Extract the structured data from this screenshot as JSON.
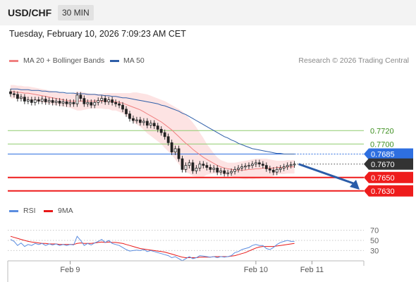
{
  "header": {
    "symbol": "USD/CHF",
    "timeframe": "30 MIN",
    "datetime": "Tuesday, February 10, 2026 7:09:23 AM CET"
  },
  "credit": "Research © 2026 Trading Central",
  "colors": {
    "ma20": "#f08080",
    "ma50": "#2e5ea8",
    "band": "#fde3e3",
    "resistance": "#8fcb6e",
    "pivot": "#2e6fe0",
    "support": "#ee1c1c",
    "current": "#333333",
    "rsi": "#5b8de0",
    "rsi_ma": "#e81818",
    "arrow": "#2a5ca8"
  },
  "chart_data": [
    {
      "type": "candlestick",
      "legend": [
        {
          "name": "MA 20 + Bollinger Bands",
          "color": "#f08080"
        },
        {
          "name": "MA 50",
          "color": "#2e5ea8"
        }
      ],
      "legend_placement": "top-left",
      "x_ticks": [
        "Feb 9",
        "Feb 10",
        "Feb 11"
      ],
      "x_tick_index": [
        17,
        70,
        86
      ],
      "x_range": [
        0,
        100
      ],
      "y_range": [
        0.7615,
        0.7815
      ],
      "levels": [
        {
          "value": 0.772,
          "label": "0.7720",
          "kind": "resistance"
        },
        {
          "value": 0.77,
          "label": "0.7700",
          "kind": "resistance"
        },
        {
          "value": 0.7685,
          "label": "0.7685",
          "kind": "pivot"
        },
        {
          "value": 0.767,
          "label": "0.7670",
          "kind": "current"
        },
        {
          "value": 0.765,
          "label": "0.7650",
          "kind": "support"
        },
        {
          "value": 0.763,
          "label": "0.7630",
          "kind": "support"
        }
      ],
      "close": [
        0.7775,
        0.7774,
        0.7768,
        0.777,
        0.7764,
        0.7766,
        0.7762,
        0.7766,
        0.7764,
        0.7767,
        0.7763,
        0.7765,
        0.7762,
        0.7764,
        0.7761,
        0.7763,
        0.776,
        0.7762,
        0.776,
        0.7773,
        0.7768,
        0.776,
        0.7762,
        0.7758,
        0.7762,
        0.7765,
        0.7768,
        0.7763,
        0.7766,
        0.7762,
        0.776,
        0.7758,
        0.7752,
        0.7745,
        0.7738,
        0.7735,
        0.7736,
        0.7732,
        0.7734,
        0.7728,
        0.7731,
        0.7727,
        0.7722,
        0.7717,
        0.7711,
        0.7702,
        0.7688,
        0.7693,
        0.7678,
        0.7662,
        0.7668,
        0.7672,
        0.766,
        0.7664,
        0.767,
        0.7668,
        0.7665,
        0.7662,
        0.7664,
        0.7658,
        0.766,
        0.7656,
        0.7657,
        0.7659,
        0.7662,
        0.7664,
        0.7666,
        0.7667,
        0.7668,
        0.767,
        0.7672,
        0.767,
        0.7668,
        0.7663,
        0.7661,
        0.7658,
        0.7662,
        0.7664,
        0.7666,
        0.7668,
        0.7669,
        0.767
      ],
      "ma20": [
        0.7778,
        0.7778,
        0.7777,
        0.7777,
        0.7776,
        0.7776,
        0.7775,
        0.7774,
        0.7773,
        0.7772,
        0.7771,
        0.777,
        0.7769,
        0.7768,
        0.7767,
        0.7766,
        0.7765,
        0.7764,
        0.7764,
        0.7764,
        0.7764,
        0.7764,
        0.7764,
        0.7764,
        0.7764,
        0.7764,
        0.7764,
        0.7764,
        0.7764,
        0.7763,
        0.7763,
        0.7762,
        0.7761,
        0.7759,
        0.7757,
        0.7755,
        0.7753,
        0.7751,
        0.7748,
        0.7745,
        0.7742,
        0.7739,
        0.7736,
        0.7733,
        0.7729,
        0.7725,
        0.7721,
        0.7716,
        0.7711,
        0.7706,
        0.7701,
        0.7697,
        0.7692,
        0.7688,
        0.7684,
        0.768,
        0.7677,
        0.7674,
        0.7671,
        0.7668,
        0.7666,
        0.7664,
        0.7663,
        0.7662,
        0.7661,
        0.7661,
        0.7661,
        0.7661,
        0.7662,
        0.7662,
        0.7663,
        0.7663,
        0.7664,
        0.7664,
        0.7664,
        0.7664,
        0.7665,
        0.7665,
        0.7665,
        0.7666,
        0.7666,
        0.7666
      ],
      "band_upper": [
        0.7788,
        0.7788,
        0.7787,
        0.7787,
        0.7786,
        0.7786,
        0.7785,
        0.7784,
        0.7783,
        0.7782,
        0.7781,
        0.778,
        0.7779,
        0.7778,
        0.7777,
        0.7776,
        0.7775,
        0.7774,
        0.7776,
        0.7778,
        0.7778,
        0.7777,
        0.7776,
        0.7775,
        0.7775,
        0.7775,
        0.7775,
        0.7776,
        0.7776,
        0.7776,
        0.7776,
        0.7776,
        0.7776,
        0.7776,
        0.7776,
        0.7777,
        0.7777,
        0.7776,
        0.7775,
        0.7774,
        0.7772,
        0.777,
        0.7768,
        0.7766,
        0.7764,
        0.7761,
        0.7758,
        0.7755,
        0.7752,
        0.7749,
        0.7744,
        0.7738,
        0.7732,
        0.7725,
        0.7717,
        0.7709,
        0.77,
        0.7693,
        0.7686,
        0.768,
        0.7676,
        0.7674,
        0.7672,
        0.7672,
        0.7672,
        0.7673,
        0.7674,
        0.7675,
        0.7676,
        0.7677,
        0.7678,
        0.7678,
        0.7678,
        0.7678,
        0.7677,
        0.7676,
        0.7675,
        0.7675,
        0.7675,
        0.7676,
        0.7676,
        0.7676
      ],
      "band_lower": [
        0.7768,
        0.7768,
        0.7767,
        0.7767,
        0.7766,
        0.7766,
        0.7765,
        0.7764,
        0.7763,
        0.7762,
        0.7761,
        0.776,
        0.7759,
        0.7758,
        0.7757,
        0.7756,
        0.7755,
        0.7754,
        0.7752,
        0.775,
        0.775,
        0.7751,
        0.7752,
        0.7753,
        0.7753,
        0.7753,
        0.7753,
        0.7752,
        0.7752,
        0.775,
        0.775,
        0.7748,
        0.7746,
        0.7742,
        0.7738,
        0.7733,
        0.7729,
        0.7726,
        0.7721,
        0.7716,
        0.7712,
        0.7708,
        0.7704,
        0.77,
        0.7694,
        0.7689,
        0.7684,
        0.7677,
        0.767,
        0.7663,
        0.7658,
        0.7656,
        0.7652,
        0.7651,
        0.7651,
        0.7651,
        0.7654,
        0.7655,
        0.7656,
        0.7656,
        0.7656,
        0.7654,
        0.7654,
        0.7652,
        0.765,
        0.7649,
        0.7648,
        0.7647,
        0.7648,
        0.7647,
        0.7648,
        0.7648,
        0.765,
        0.765,
        0.7651,
        0.7652,
        0.7655,
        0.7655,
        0.7655,
        0.7656,
        0.7656,
        0.7656
      ],
      "ma50": [
        0.7782,
        0.7782,
        0.7782,
        0.7781,
        0.7781,
        0.7781,
        0.778,
        0.778,
        0.778,
        0.7779,
        0.7779,
        0.7778,
        0.7778,
        0.7778,
        0.7777,
        0.7777,
        0.7776,
        0.7776,
        0.7776,
        0.7775,
        0.7775,
        0.7775,
        0.7774,
        0.7774,
        0.7774,
        0.7773,
        0.7773,
        0.7772,
        0.7772,
        0.7771,
        0.7771,
        0.777,
        0.7769,
        0.7769,
        0.7768,
        0.7767,
        0.7766,
        0.7765,
        0.7764,
        0.7763,
        0.7762,
        0.7761,
        0.776,
        0.7758,
        0.7757,
        0.7755,
        0.7753,
        0.7751,
        0.7749,
        0.7746,
        0.7744,
        0.7741,
        0.7738,
        0.7735,
        0.7732,
        0.7729,
        0.7726,
        0.7723,
        0.772,
        0.7717,
        0.7714,
        0.7711,
        0.7709,
        0.7706,
        0.7704,
        0.7701,
        0.7699,
        0.7697,
        0.7695,
        0.7693,
        0.7692,
        0.7691,
        0.769,
        0.7689,
        0.7688,
        0.7687,
        0.7686,
        0.7686,
        0.7685,
        0.7685,
        0.7685,
        0.7685
      ]
    },
    {
      "type": "line",
      "legend": [
        {
          "name": "RSI",
          "color": "#5b8de0"
        },
        {
          "name": "9MA",
          "color": "#e81818"
        }
      ],
      "legend_placement": "top-left",
      "y_ticks": [
        30,
        50,
        70
      ],
      "y_range": [
        0,
        100
      ],
      "x_range": [
        0,
        100
      ],
      "rsi": [
        52,
        48,
        40,
        45,
        38,
        42,
        40,
        44,
        42,
        44,
        40,
        43,
        41,
        43,
        40,
        42,
        40,
        42,
        41,
        58,
        50,
        40,
        44,
        41,
        45,
        48,
        52,
        46,
        50,
        44,
        42,
        40,
        36,
        32,
        29,
        30,
        31,
        30,
        32,
        28,
        30,
        28,
        26,
        24,
        22,
        20,
        16,
        18,
        14,
        10,
        14,
        18,
        14,
        16,
        20,
        19,
        18,
        17,
        18,
        16,
        18,
        17,
        18,
        20,
        26,
        28,
        32,
        34,
        36,
        40,
        42,
        40,
        40,
        34,
        32,
        36,
        42,
        46,
        48,
        50,
        48,
        48
      ],
      "rsi_ma": [
        58,
        56,
        54,
        52,
        50,
        48,
        47,
        46,
        45,
        44,
        44,
        43,
        43,
        43,
        42,
        42,
        42,
        42,
        42,
        44,
        45,
        44,
        44,
        44,
        45,
        46,
        47,
        46,
        47,
        46,
        46,
        45,
        44,
        42,
        40,
        38,
        36,
        34,
        33,
        32,
        31,
        30,
        29,
        28,
        27,
        25,
        23,
        21,
        19,
        17,
        16,
        16,
        16,
        16,
        17,
        17,
        17,
        17,
        18,
        18,
        18,
        18,
        18,
        19,
        20,
        22,
        24,
        26,
        29,
        32,
        35,
        37,
        38,
        38,
        38,
        38,
        39,
        40,
        41,
        42,
        43,
        44
      ]
    }
  ]
}
